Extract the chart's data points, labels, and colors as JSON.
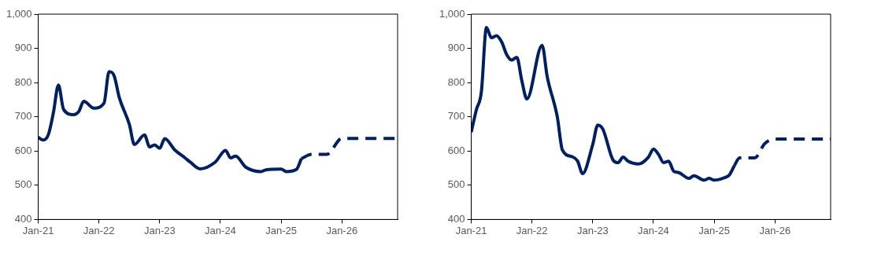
{
  "chart_data": [
    {
      "type": "line",
      "xlim": [
        "2021-01",
        "2026-12"
      ],
      "xticks": [
        {
          "value": "2021-01",
          "label": "Jan-21"
        },
        {
          "value": "2022-01",
          "label": "Jan-22"
        },
        {
          "value": "2023-01",
          "label": "Jan-23"
        },
        {
          "value": "2024-01",
          "label": "Jan-24"
        },
        {
          "value": "2025-01",
          "label": "Jan-25"
        },
        {
          "value": "2026-01",
          "label": "Jan-26"
        }
      ],
      "ylim": [
        400,
        1000
      ],
      "yticks": [
        400,
        500,
        600,
        700,
        800,
        900,
        {
          "value": 1000,
          "label": "1,000"
        }
      ],
      "grid": false,
      "legend": false,
      "marker": "none",
      "series": [
        {
          "color": "#002060",
          "line_style": "solid",
          "x": [
            "2021-01",
            "2021-02",
            "2021-03",
            "2021-04",
            "2021-05",
            "2021-06",
            "2021-08",
            "2021-09",
            "2021-10",
            "2021-12",
            "2022-02",
            "2022-03",
            "2022-04",
            "2022-05",
            "2022-07",
            "2022-08",
            "2022-10",
            "2022-11",
            "2022-12",
            "2023-01",
            "2023-02",
            "2023-04",
            "2023-06",
            "2023-07",
            "2023-09",
            "2023-12",
            "2024-02",
            "2024-03",
            "2024-04",
            "2024-06",
            "2024-09",
            "2024-10",
            "2025-01",
            "2025-02",
            "2025-04",
            "2025-05"
          ],
          "values": [
            640,
            632,
            648,
            712,
            793,
            722,
            706,
            715,
            745,
            725,
            740,
            832,
            820,
            757,
            678,
            619,
            647,
            612,
            618,
            608,
            636,
            603,
            580,
            568,
            548,
            568,
            602,
            580,
            585,
            553,
            540,
            545,
            547,
            540,
            546,
            578
          ]
        },
        {
          "color": "#002060",
          "line_style": "dashed",
          "x": [
            "2025-05",
            "2025-07",
            "2025-10",
            "2026-01",
            "2026-12"
          ],
          "values": [
            578,
            590,
            590,
            637,
            637
          ]
        }
      ]
    },
    {
      "type": "line",
      "xlim": [
        "2021-01",
        "2026-12"
      ],
      "xticks": [
        {
          "value": "2021-01",
          "label": "Jan-21"
        },
        {
          "value": "2022-01",
          "label": "Jan-22"
        },
        {
          "value": "2023-01",
          "label": "Jan-23"
        },
        {
          "value": "2024-01",
          "label": "Jan-24"
        },
        {
          "value": "2025-01",
          "label": "Jan-25"
        },
        {
          "value": "2026-01",
          "label": "Jan-26"
        }
      ],
      "ylim": [
        400,
        1000
      ],
      "yticks": [
        400,
        500,
        600,
        700,
        800,
        900,
        {
          "value": 1000,
          "label": "1,000"
        }
      ],
      "grid": false,
      "legend": false,
      "marker": "none",
      "series": [
        {
          "color": "#002060",
          "line_style": "solid",
          "x": [
            "2021-01",
            "2021-02",
            "2021-03",
            "2021-04",
            "2021-05",
            "2021-06",
            "2021-07",
            "2021-08",
            "2021-09",
            "2021-10",
            "2021-11",
            "2021-12",
            "2022-03",
            "2022-04",
            "2022-06",
            "2022-07",
            "2022-09",
            "2022-10",
            "2022-11",
            "2023-01",
            "2023-02",
            "2023-03",
            "2023-05",
            "2023-06",
            "2023-07",
            "2023-08",
            "2023-10",
            "2023-12",
            "2024-01",
            "2024-02",
            "2024-03",
            "2024-04",
            "2024-05",
            "2024-06",
            "2024-08",
            "2024-09",
            "2024-11",
            "2024-12",
            "2025-01",
            "2025-03",
            "2025-04",
            "2025-05"
          ],
          "values": [
            655,
            720,
            773,
            961,
            931,
            937,
            919,
            882,
            866,
            874,
            805,
            752,
            909,
            818,
            700,
            603,
            583,
            571,
            534,
            619,
            676,
            664,
            574,
            566,
            582,
            570,
            562,
            582,
            606,
            590,
            566,
            570,
            541,
            537,
            520,
            528,
            515,
            520,
            515,
            522,
            530,
            558
          ]
        },
        {
          "color": "#002060",
          "line_style": "dashed",
          "x": [
            "2025-05",
            "2025-06",
            "2025-09",
            "2025-11",
            "2026-01",
            "2026-12"
          ],
          "values": [
            558,
            580,
            580,
            622,
            635,
            635
          ]
        }
      ]
    }
  ]
}
